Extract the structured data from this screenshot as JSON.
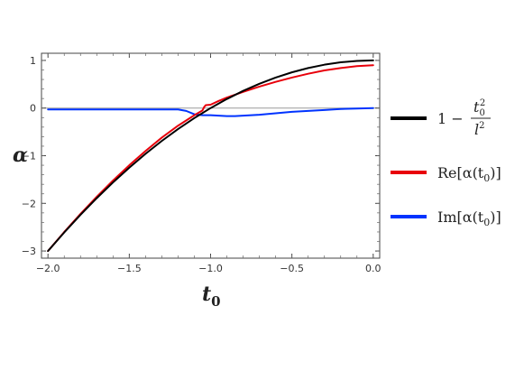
{
  "chart_data": {
    "type": "line",
    "xlabel": "t",
    "xlabel_sub": "0",
    "ylabel": "α",
    "xlim": [
      -2.04,
      0.04
    ],
    "ylim": [
      -3.15,
      1.15
    ],
    "grid": false,
    "legend_position": "right",
    "x_ticks": [
      -2.0,
      -1.5,
      -1.0,
      -0.5,
      0.0
    ],
    "x_tick_labels": [
      "−2.0",
      "−1.5",
      "−1.0",
      "−0.5",
      "0.0"
    ],
    "y_ticks": [
      1,
      0,
      -1,
      -2,
      -3
    ],
    "y_tick_labels": [
      "1",
      "0",
      "−1",
      "−2",
      "−3"
    ],
    "series": [
      {
        "name": "1 − t₀²/l²",
        "color": "#000000",
        "x": [
          -2.0,
          -1.9,
          -1.8,
          -1.7,
          -1.6,
          -1.5,
          -1.4,
          -1.3,
          -1.2,
          -1.1,
          -1.0,
          -0.9,
          -0.8,
          -0.7,
          -0.6,
          -0.5,
          -0.4,
          -0.3,
          -0.2,
          -0.1,
          0.0
        ],
        "y": [
          -3.0,
          -2.61,
          -2.24,
          -1.89,
          -1.56,
          -1.25,
          -0.96,
          -0.69,
          -0.44,
          -0.21,
          0.0,
          0.19,
          0.36,
          0.51,
          0.64,
          0.75,
          0.84,
          0.91,
          0.96,
          0.99,
          1.0
        ]
      },
      {
        "name": "Re[α(t₀)]",
        "color": "#e8000b",
        "x": [
          -2.0,
          -1.9,
          -1.8,
          -1.7,
          -1.6,
          -1.5,
          -1.4,
          -1.3,
          -1.2,
          -1.1,
          -1.05,
          -1.04,
          -1.03,
          -1.0,
          -0.95,
          -0.9,
          -0.85,
          -0.8,
          -0.7,
          -0.6,
          -0.5,
          -0.4,
          -0.3,
          -0.2,
          -0.1,
          0.0
        ],
        "y": [
          -3.0,
          -2.6,
          -2.22,
          -1.86,
          -1.52,
          -1.2,
          -0.9,
          -0.62,
          -0.37,
          -0.15,
          -0.05,
          0.02,
          0.06,
          0.07,
          0.15,
          0.22,
          0.28,
          0.34,
          0.45,
          0.55,
          0.64,
          0.72,
          0.79,
          0.84,
          0.88,
          0.9
        ]
      },
      {
        "name": "Im[α(t₀)]",
        "color": "#0033ff",
        "x": [
          -2.0,
          -1.5,
          -1.2,
          -1.15,
          -1.1,
          -1.05,
          -1.0,
          -0.95,
          -0.9,
          -0.85,
          -0.8,
          -0.7,
          -0.6,
          -0.5,
          -0.4,
          -0.3,
          -0.2,
          -0.1,
          0.0
        ],
        "y": [
          -0.03,
          -0.03,
          -0.03,
          -0.06,
          -0.13,
          -0.15,
          -0.15,
          -0.16,
          -0.17,
          -0.17,
          -0.16,
          -0.14,
          -0.11,
          -0.08,
          -0.06,
          -0.04,
          -0.02,
          -0.01,
          0.0
        ]
      }
    ]
  },
  "legend": {
    "items": [
      {
        "key": "exact",
        "color": "#000000",
        "text_prefix": "1 −",
        "num": "t",
        "num_sub": "0",
        "num_sup": "2",
        "den": "l",
        "den_sup": "2"
      },
      {
        "key": "re",
        "color": "#e8000b",
        "text": "Re[α(t",
        "sub": "0",
        "suffix": ")]"
      },
      {
        "key": "im",
        "color": "#0033ff",
        "text": "Im[α(t",
        "sub": "0",
        "suffix": ")]"
      }
    ]
  }
}
